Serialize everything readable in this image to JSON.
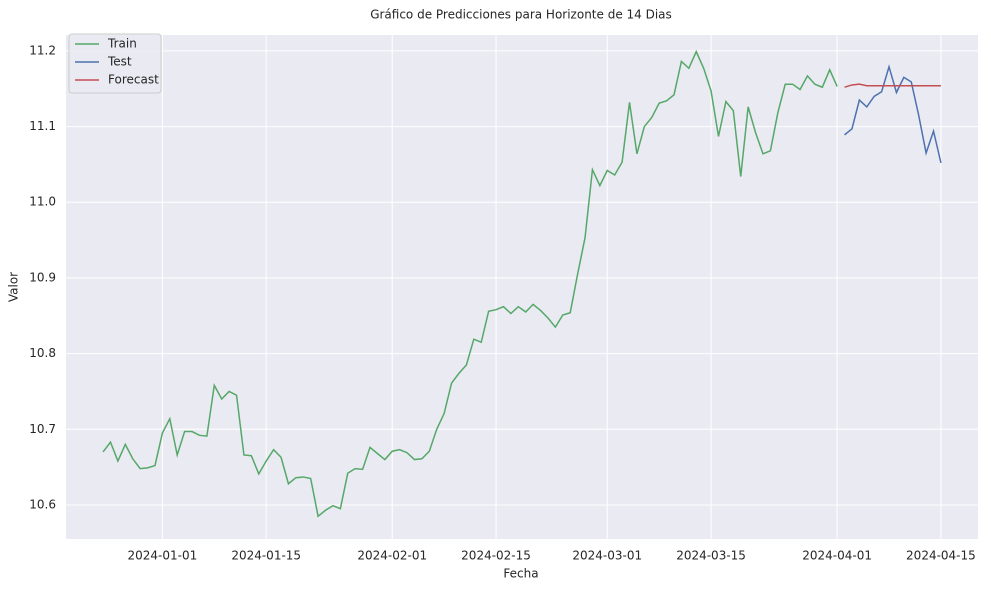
{
  "chart_data": {
    "type": "line",
    "title": "Gráfico de Predicciones para Horizonte de 14 Dias",
    "xlabel": "Fecha",
    "ylabel": "Valor",
    "grid": true,
    "legend": "upper left",
    "xlim": [
      "2023-12-19",
      "2024-04-20"
    ],
    "xticks": [
      "2024-01-01",
      "2024-01-15",
      "2024-02-01",
      "2024-02-15",
      "2024-03-01",
      "2024-03-15",
      "2024-04-01",
      "2024-04-15"
    ],
    "ylim": [
      10.555,
      11.221
    ],
    "yticks": [
      10.6,
      10.7,
      10.8,
      10.9,
      {
        "value": 11,
        "label": "11.0"
      },
      11.1,
      11.2
    ],
    "series": [
      {
        "name": "Train",
        "color": "#55a868",
        "x": [
          "2023-12-24",
          "2023-12-25",
          "2023-12-26",
          "2023-12-27",
          "2023-12-28",
          "2023-12-29",
          "2023-12-30",
          "2023-12-31",
          "2024-01-01",
          "2024-01-02",
          "2024-01-03",
          "2024-01-04",
          "2024-01-05",
          "2024-01-06",
          "2024-01-07",
          "2024-01-08",
          "2024-01-09",
          "2024-01-10",
          "2024-01-11",
          "2024-01-12",
          "2024-01-13",
          "2024-01-14",
          "2024-01-15",
          "2024-01-16",
          "2024-01-17",
          "2024-01-18",
          "2024-01-19",
          "2024-01-20",
          "2024-01-21",
          "2024-01-22",
          "2024-01-23",
          "2024-01-24",
          "2024-01-25",
          "2024-01-26",
          "2024-01-27",
          "2024-01-28",
          "2024-01-29",
          "2024-01-30",
          "2024-01-31",
          "2024-02-01",
          "2024-02-02",
          "2024-02-03",
          "2024-02-04",
          "2024-02-05",
          "2024-02-06",
          "2024-02-07",
          "2024-02-08",
          "2024-02-09",
          "2024-02-10",
          "2024-02-11",
          "2024-02-12",
          "2024-02-13",
          "2024-02-14",
          "2024-02-15",
          "2024-02-16",
          "2024-02-17",
          "2024-02-18",
          "2024-02-19",
          "2024-02-20",
          "2024-02-21",
          "2024-02-22",
          "2024-02-23",
          "2024-02-24",
          "2024-02-25",
          "2024-02-26",
          "2024-02-27",
          "2024-02-28",
          "2024-02-29",
          "2024-03-01",
          "2024-03-02",
          "2024-03-03",
          "2024-03-04",
          "2024-03-05",
          "2024-03-06",
          "2024-03-07",
          "2024-03-08",
          "2024-03-09",
          "2024-03-10",
          "2024-03-11",
          "2024-03-12",
          "2024-03-13",
          "2024-03-14",
          "2024-03-15",
          "2024-03-16",
          "2024-03-17",
          "2024-03-18",
          "2024-03-19",
          "2024-03-20",
          "2024-03-21",
          "2024-03-22",
          "2024-03-23",
          "2024-03-24",
          "2024-03-25",
          "2024-03-26",
          "2024-03-27",
          "2024-03-28",
          "2024-03-29",
          "2024-03-30",
          "2024-03-31",
          "2024-04-01"
        ],
        "values": [
          10.67,
          10.683,
          10.658,
          10.68,
          10.661,
          10.648,
          10.649,
          10.652,
          10.695,
          10.714,
          10.666,
          10.697,
          10.697,
          10.692,
          10.691,
          10.758,
          10.74,
          10.75,
          10.745,
          10.666,
          10.665,
          10.641,
          10.658,
          10.673,
          10.663,
          10.628,
          10.636,
          10.637,
          10.635,
          10.585,
          10.593,
          10.599,
          10.595,
          10.642,
          10.648,
          10.647,
          10.676,
          10.668,
          10.66,
          10.671,
          10.673,
          10.669,
          10.66,
          10.661,
          10.671,
          10.7,
          10.721,
          10.761,
          10.774,
          10.785,
          10.819,
          10.815,
          10.856,
          10.858,
          10.862,
          10.853,
          10.862,
          10.855,
          10.865,
          10.857,
          10.847,
          10.835,
          10.851,
          10.854,
          10.905,
          10.953,
          11.043,
          11.022,
          11.042,
          11.036,
          11.053,
          11.132,
          11.064,
          11.1,
          11.112,
          11.131,
          11.134,
          11.142,
          11.186,
          11.177,
          11.199,
          11.177,
          11.147,
          11.087,
          11.133,
          11.121,
          11.034,
          11.126,
          11.092,
          11.064,
          11.068,
          11.118,
          11.156,
          11.156,
          11.149,
          11.167,
          11.156,
          11.152,
          11.175,
          11.153
        ]
      },
      {
        "name": "Test",
        "color": "#4c72b0",
        "x": [
          "2024-04-02",
          "2024-04-03",
          "2024-04-04",
          "2024-04-05",
          "2024-04-06",
          "2024-04-07",
          "2024-04-08",
          "2024-04-09",
          "2024-04-10",
          "2024-04-11",
          "2024-04-12",
          "2024-04-13",
          "2024-04-14",
          "2024-04-15"
        ],
        "values": [
          11.089,
          11.097,
          11.135,
          11.126,
          11.14,
          11.146,
          11.179,
          11.145,
          11.165,
          11.159,
          11.115,
          11.065,
          11.094,
          11.052
        ]
      },
      {
        "name": "Forecast",
        "color": "#c44e52",
        "x": [
          "2024-04-02",
          "2024-04-03",
          "2024-04-04",
          "2024-04-05",
          "2024-04-06",
          "2024-04-07",
          "2024-04-08",
          "2024-04-09",
          "2024-04-10",
          "2024-04-11",
          "2024-04-12",
          "2024-04-13",
          "2024-04-14",
          "2024-04-15"
        ],
        "values": [
          11.152,
          11.155,
          11.156,
          11.154,
          11.154,
          11.154,
          11.154,
          11.154,
          11.154,
          11.154,
          11.154,
          11.154,
          11.154,
          11.154
        ]
      }
    ]
  }
}
